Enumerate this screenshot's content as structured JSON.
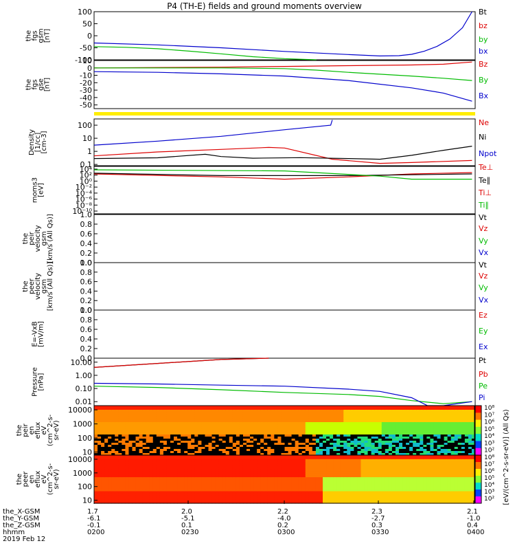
{
  "title": "P4 (TH-E) fields and ground moments overview",
  "chart_data": [
    {
      "type": "line",
      "panel": "fgs_gsm",
      "ylabel": [
        "the",
        "fgs",
        "gsm",
        "[nT]"
      ],
      "ylim": [
        -100,
        100
      ],
      "yticks": [
        "100",
        "50",
        "0",
        "-50",
        "-100"
      ],
      "yticks_values": [
        100,
        50,
        0,
        -50,
        -100
      ],
      "x_range": [
        0,
        120
      ],
      "series": [
        {
          "name": "Bt",
          "color": "#000000",
          "x": [],
          "values": []
        },
        {
          "name": "bz",
          "color": "#dd0000",
          "x": [],
          "values": []
        },
        {
          "name": "by",
          "color": "#00bb00",
          "x": [
            0,
            10,
            20,
            30,
            40,
            50,
            60,
            70
          ],
          "values": [
            -45,
            -48,
            -54,
            -64,
            -75,
            -87,
            -95,
            -103
          ]
        },
        {
          "name": "bx",
          "color": "#0000cc",
          "x": [
            0,
            20,
            40,
            60,
            80,
            90,
            96,
            100,
            104,
            108,
            112,
            116,
            119
          ],
          "values": [
            -30,
            -38,
            -50,
            -65,
            -78,
            -84,
            -83,
            -77,
            -64,
            -44,
            -14,
            33,
            105
          ]
        }
      ]
    },
    {
      "type": "line",
      "panel": "fgs_gse",
      "ylabel": [
        "the",
        "fgs",
        "gse",
        "[nT]"
      ],
      "ylim": [
        -55,
        10
      ],
      "yticks": [
        "10",
        "0",
        "-10",
        "-20",
        "-30",
        "-40",
        "-50"
      ],
      "yticks_values": [
        10,
        0,
        -10,
        -20,
        -30,
        -40,
        -50
      ],
      "x_range": [
        0,
        120
      ],
      "series": [
        {
          "name": "Bz",
          "color": "#dd0000",
          "x": [
            0,
            20,
            40,
            60,
            80,
            100,
            110,
            119
          ],
          "values": [
            0,
            0.5,
            1,
            2,
            3,
            4,
            5,
            8
          ]
        },
        {
          "name": "By",
          "color": "#00bb00",
          "x": [
            0,
            20,
            40,
            60,
            70,
            80,
            100,
            110,
            119
          ],
          "values": [
            0,
            0,
            0,
            -1,
            -3,
            -6,
            -11,
            -14,
            -17
          ]
        },
        {
          "name": "Bx",
          "color": "#0000cc",
          "x": [
            0,
            20,
            40,
            60,
            80,
            100,
            110,
            119
          ],
          "values": [
            -5,
            -6,
            -8,
            -11,
            -17,
            -27,
            -34,
            -45
          ]
        }
      ]
    },
    {
      "type": "line",
      "panel": "density",
      "ylabel": [
        "Density",
        "[1/cc]",
        "[cm-3]"
      ],
      "yscale": "log",
      "ylim": [
        0.08,
        300
      ],
      "yticks": [
        "100",
        "10",
        "1",
        "0.1"
      ],
      "yticks_values": [
        100,
        10,
        1,
        0.1
      ],
      "x_range": [
        0,
        120
      ],
      "series": [
        {
          "name": "Ne",
          "color": "#dd0000",
          "x": [
            0,
            20,
            40,
            55,
            60,
            75,
            90,
            100,
            119
          ],
          "values": [
            0.45,
            0.9,
            1.4,
            2.0,
            1.8,
            0.25,
            0.12,
            0.14,
            0.2
          ]
        },
        {
          "name": "Ni",
          "color": "#000000",
          "x": [
            0,
            20,
            35,
            40,
            50,
            65,
            80,
            90,
            100,
            110,
            119
          ],
          "values": [
            0.28,
            0.32,
            0.6,
            0.4,
            0.3,
            0.33,
            0.28,
            0.25,
            0.5,
            1.2,
            2.5
          ]
        },
        {
          "name": "Npot",
          "color": "#0000cc",
          "x": [
            0,
            20,
            40,
            60,
            74.5,
            75
          ],
          "values": [
            3,
            6,
            14,
            45,
            100,
            250
          ]
        }
      ]
    },
    {
      "type": "line",
      "panel": "moms_temp",
      "ylabel": [
        "moms3",
        "[eV]"
      ],
      "yscale": "log",
      "ylim": [
        0.01,
        20000
      ],
      "yticks": [
        "10⁴",
        "10²",
        "10⁰",
        "10⁻²",
        "10⁻⁴",
        "10⁻⁶",
        "10⁻⁸",
        "10⁻¹⁰"
      ],
      "x_range": [
        0,
        120
      ],
      "series": [
        {
          "name": "Te⊥",
          "color": "#dd0000",
          "x": [
            0,
            40,
            60,
            80,
            100,
            119
          ],
          "values": [
            2000,
            800,
            400,
            800,
            2000,
            3000
          ]
        },
        {
          "name": "Te∥",
          "color": "#000000",
          "x": [
            0,
            40,
            80,
            119
          ],
          "values": [
            2500,
            1200,
            1200,
            2000
          ]
        },
        {
          "name": "Ti⊥",
          "color": "#dd0000",
          "x": [],
          "values": []
        },
        {
          "name": "Ti∥",
          "color": "#00bb00",
          "x": [
            0,
            60,
            90,
            100,
            119
          ],
          "values": [
            7000,
            5000,
            1000,
            400,
            400
          ]
        }
      ]
    },
    {
      "type": "line",
      "panel": "peir_velocity",
      "ylabel": [
        "the",
        "peir",
        "velocity",
        "gsm",
        "[km/s (All Qs)]"
      ],
      "ylim": [
        0,
        1
      ],
      "yticks": [
        "1.0",
        "0.8",
        "0.6",
        "0.4",
        "0.2",
        "0.0"
      ],
      "yticks_values": [
        1,
        0.8,
        0.6,
        0.4,
        0.2,
        0
      ],
      "series": [
        {
          "name": "Vt",
          "values": []
        },
        {
          "name": "Vz",
          "values": []
        },
        {
          "name": "Vy",
          "values": []
        },
        {
          "name": "Vx",
          "values": []
        }
      ]
    },
    {
      "type": "line",
      "panel": "peer_velocity",
      "ylabel": [
        "the",
        "peer",
        "velocity",
        "gsm",
        "[km/s (All Qs)]"
      ],
      "ylim": [
        0,
        1
      ],
      "yticks": [
        "1.0",
        "0.8",
        "0.6",
        "0.4",
        "0.2",
        "0.0"
      ],
      "yticks_values": [
        1,
        0.8,
        0.6,
        0.4,
        0.2,
        0
      ],
      "series": [
        {
          "name": "Vt",
          "values": []
        },
        {
          "name": "Vz",
          "values": []
        },
        {
          "name": "Vy",
          "values": []
        },
        {
          "name": "Vx",
          "values": []
        }
      ]
    },
    {
      "type": "line",
      "panel": "e_field",
      "ylabel": [
        "E=-VxB",
        "[mV/m]"
      ],
      "ylim": [
        0,
        1
      ],
      "yticks": [
        "1.0",
        "0.8",
        "0.6",
        "0.4",
        "0.2",
        "0.0"
      ],
      "yticks_values": [
        1,
        0.8,
        0.6,
        0.4,
        0.2,
        0
      ],
      "series": [
        {
          "name": "Ez",
          "values": []
        },
        {
          "name": "Ey",
          "values": []
        },
        {
          "name": "Ex",
          "values": []
        }
      ]
    },
    {
      "type": "line",
      "panel": "pressure",
      "ylabel": [
        "Pressure",
        "[nPa]"
      ],
      "yscale": "log",
      "ylim": [
        0.005,
        20
      ],
      "yticks": [
        "10.00",
        "1.00",
        "0.10",
        "0.01"
      ],
      "yticks_values": [
        10,
        1,
        0.1,
        0.01
      ],
      "x_range": [
        0,
        120
      ],
      "series": [
        {
          "name": "Pt",
          "color": "#000000",
          "x": [
            0,
            20,
            40,
            55
          ],
          "values": [
            4,
            8,
            16,
            30
          ]
        },
        {
          "name": "Pb",
          "color": "#dd0000",
          "x": [
            0,
            20,
            40,
            55
          ],
          "values": [
            4,
            8,
            16,
            30
          ]
        },
        {
          "name": "Pe",
          "color": "#00bb00",
          "x": [
            0,
            20,
            40,
            60,
            80,
            90,
            100,
            110,
            119
          ],
          "values": [
            0.15,
            0.12,
            0.08,
            0.05,
            0.035,
            0.025,
            0.012,
            0.007,
            0.01
          ]
        },
        {
          "name": "Pi",
          "color": "#0000cc",
          "x": [
            0,
            20,
            40,
            60,
            80,
            90,
            100,
            105,
            110,
            119
          ],
          "values": [
            0.25,
            0.22,
            0.18,
            0.15,
            0.09,
            0.06,
            0.02,
            0.004,
            0.005,
            0.01
          ]
        }
      ]
    },
    {
      "type": "heatmap",
      "panel": "peir_en_eflux",
      "ylabel": [
        "the",
        "peir",
        "en",
        "eflux",
        "eV",
        "(cm^2-s-",
        "sr-eV)"
      ],
      "yscale": "log",
      "ylim": [
        6,
        20000
      ],
      "yticks": [
        "10000",
        "1000",
        "100",
        "10"
      ],
      "yticks_values": [
        10000,
        1000,
        100,
        10
      ],
      "colorbar": {
        "label": "[eV/(cm^2-s-sr-eV)] (All Qs)",
        "ticks": [
          "10⁸",
          "10⁷",
          "10⁶",
          "10⁵",
          "10⁴",
          "10³",
          "10²"
        ]
      }
    },
    {
      "type": "heatmap",
      "panel": "peer_en_eflux",
      "ylabel": [
        "the",
        "peer",
        "en",
        "eflux",
        "eV",
        "(cm^2-s-",
        "sr-eV)"
      ],
      "yscale": "log",
      "ylim": [
        6,
        20000
      ],
      "yticks": [
        "10000",
        "1000",
        "100",
        "10"
      ],
      "yticks_values": [
        10000,
        1000,
        100,
        10
      ],
      "colorbar": {
        "label": "[eV/(cm^2-s-sr-eV)] (All Qs)",
        "ticks": [
          "10⁸",
          "10⁷",
          "10⁶",
          "10⁵",
          "10⁴",
          "10³",
          "10²"
        ]
      }
    }
  ],
  "x_axis": {
    "rows": [
      {
        "label": "the_X-GSM",
        "ticks": [
          "1.7",
          "2.0",
          "2.2",
          "2.3",
          "2.1"
        ]
      },
      {
        "label": "the_Y-GSM",
        "ticks": [
          "-6.1",
          "-5.1",
          "-4.0",
          "-2.7",
          "-1.0"
        ]
      },
      {
        "label": "the_Z-GSM",
        "ticks": [
          "-0.1",
          "0.1",
          "0.2",
          "0.3",
          "0.4"
        ]
      },
      {
        "label": "hhmm",
        "ticks": [
          "0200",
          "0230",
          "0300",
          "0330",
          "0400"
        ]
      }
    ],
    "date": "2019 Feb 12"
  }
}
